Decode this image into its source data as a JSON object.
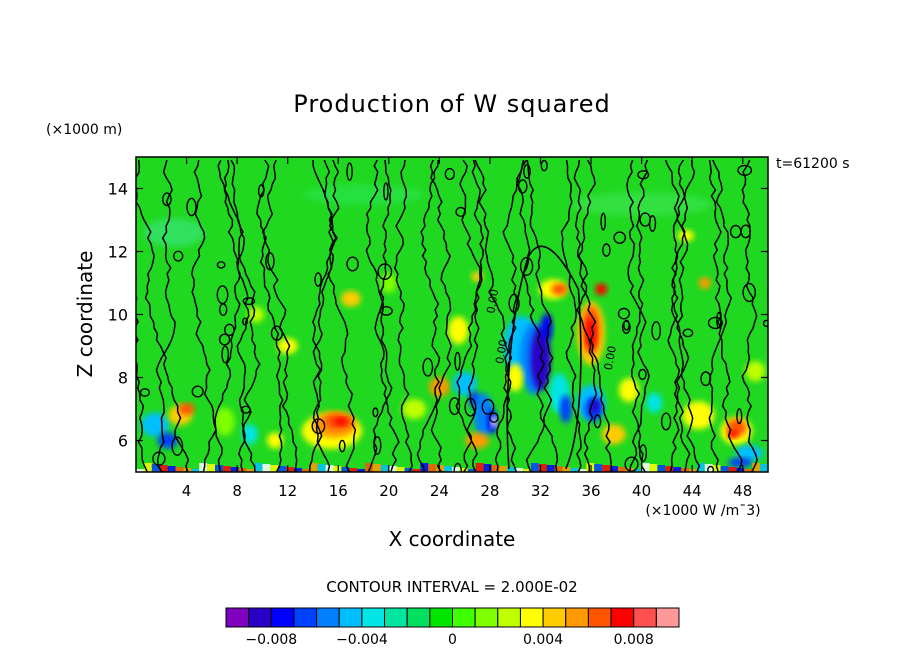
{
  "chart_data": {
    "type": "heatmap",
    "title": "Production of W squared",
    "time_label": "t=61200 s",
    "y_units": "(x1000 m)",
    "x_units": "(x1000 W /m^3)",
    "x_units_display": "(×1000 W /m¯3)",
    "y_units_display": "(×1000 m)",
    "xlabel": "X coordinate",
    "ylabel": "Z coordinate",
    "xlim": [
      0,
      50
    ],
    "ylim": [
      5,
      15
    ],
    "x_ticks": [
      4,
      8,
      12,
      16,
      20,
      24,
      28,
      32,
      36,
      40,
      44,
      48
    ],
    "y_ticks": [
      6,
      8,
      10,
      12,
      14
    ],
    "contour_interval_text": "CONTOUR INTERVAL = 2.000E-02",
    "contour_labels": [
      "0.00",
      "0.00",
      "0.00"
    ],
    "colorbar": {
      "levels": [
        -0.01,
        -0.009,
        -0.008,
        -0.007,
        -0.006,
        -0.005,
        -0.004,
        -0.003,
        -0.002,
        -0.001,
        0.0,
        0.001,
        0.002,
        0.003,
        0.004,
        0.005,
        0.006,
        0.007,
        0.008,
        0.009,
        0.01
      ],
      "colors": [
        "#7f00bf",
        "#2a00c8",
        "#0000ff",
        "#0040ff",
        "#0080ff",
        "#00bfff",
        "#00e5e5",
        "#00e6a0",
        "#00e060",
        "#00e600",
        "#40ff00",
        "#80ff00",
        "#bfff00",
        "#ffff00",
        "#ffcc00",
        "#ff9900",
        "#ff5500",
        "#ff0000",
        "#ff5050",
        "#ff9999"
      ],
      "tick_values": [
        -0.008,
        -0.004,
        0,
        0.004,
        0.008
      ],
      "tick_labels": [
        "−0.008",
        "−0.004",
        "0",
        "0.004",
        "0.008"
      ]
    }
  }
}
